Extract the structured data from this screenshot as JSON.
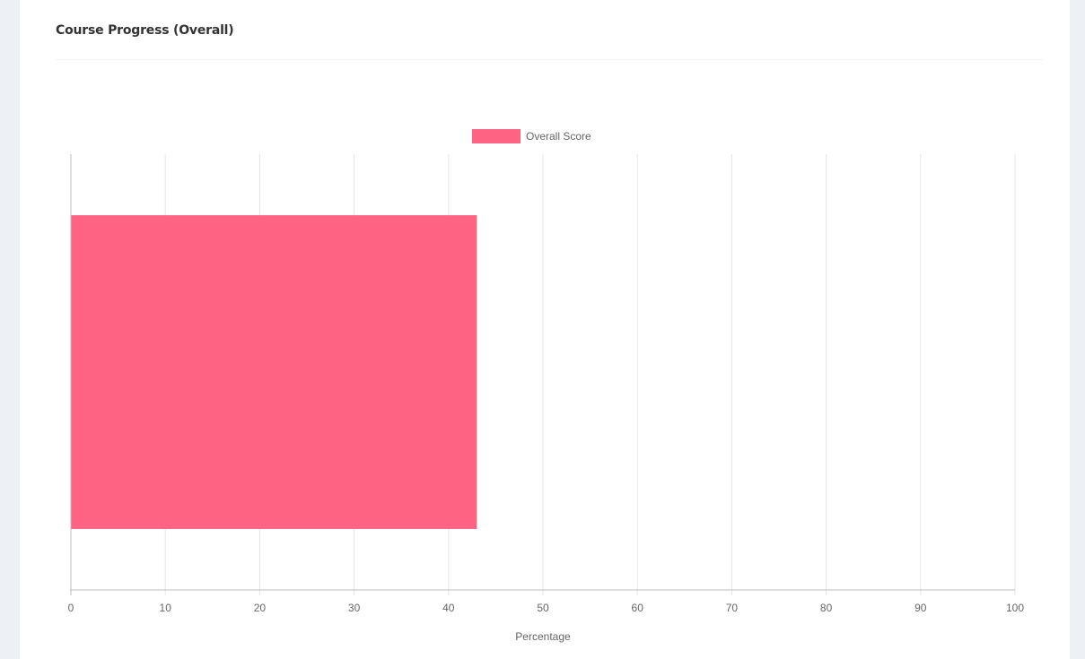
{
  "card": {
    "title": "Course Progress (Overall)"
  },
  "chart_data": {
    "type": "bar",
    "orientation": "horizontal",
    "title": "",
    "legend": {
      "position": "top",
      "entries": [
        "Overall Score"
      ]
    },
    "categories": [
      ""
    ],
    "series": [
      {
        "name": "Overall Score",
        "values": [
          43
        ],
        "color": "#ff6384"
      }
    ],
    "xlabel": "Percentage",
    "ylabel": "",
    "xlim": [
      0,
      100
    ],
    "xticks": [
      "0",
      "10",
      "20",
      "30",
      "40",
      "50",
      "60",
      "70",
      "80",
      "90",
      "100"
    ],
    "grid": true
  }
}
